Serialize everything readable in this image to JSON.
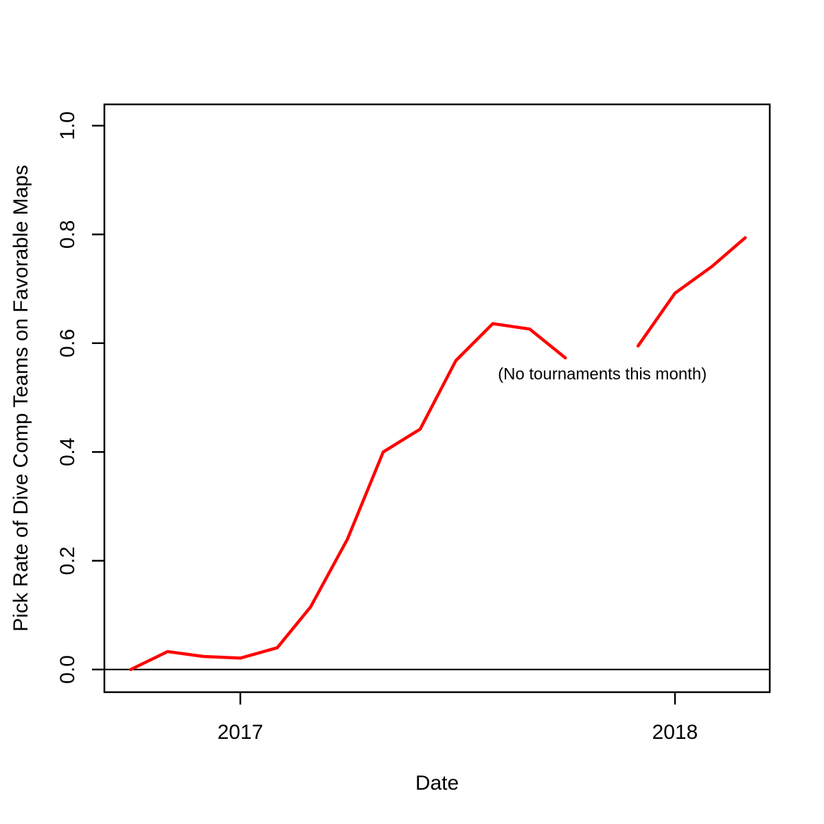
{
  "chart_data": {
    "type": "line",
    "title": "",
    "xlabel": "Date",
    "ylabel": "Pick Rate of Dive Comp Teams on Favorable Maps",
    "ylim": [
      0.0,
      1.0
    ],
    "grid": false,
    "legend": "none",
    "background_color": "#FFFFFF",
    "axis_color": "#000000",
    "line_color": "#FF0000",
    "zero_line": {
      "value": 0.0
    },
    "x_axis": {
      "title": "Date",
      "ticks": [
        {
          "label": "2017",
          "date": "2017-01-01"
        },
        {
          "label": "2018",
          "date": "2018-01-01"
        }
      ]
    },
    "y_axis": {
      "title": "Pick Rate of Dive Comp Teams on Favorable Maps",
      "tick_values": [
        0.0,
        0.2,
        0.4,
        0.6,
        0.8,
        1.0
      ],
      "tick_labels": [
        "0.0",
        "0.2",
        "0.4",
        "0.6",
        "0.8",
        "1.0"
      ]
    },
    "annotation": {
      "text": "(No tournaments this month)",
      "date": "2017-11-01",
      "value": 0.545
    },
    "series": [
      {
        "color": "#FF0000",
        "points": [
          {
            "date": "2016-10-01",
            "value": 0.0
          },
          {
            "date": "2016-11-01",
            "value": 0.033
          },
          {
            "date": "2016-12-01",
            "value": 0.024
          },
          {
            "date": "2017-01-01",
            "value": 0.021
          },
          {
            "date": "2017-02-01",
            "value": 0.04
          },
          {
            "date": "2017-03-01",
            "value": 0.115
          },
          {
            "date": "2017-04-01",
            "value": 0.24
          },
          {
            "date": "2017-05-01",
            "value": 0.4
          },
          {
            "date": "2017-06-01",
            "value": 0.442
          },
          {
            "date": "2017-07-01",
            "value": 0.568
          },
          {
            "date": "2017-08-01",
            "value": 0.636
          },
          {
            "date": "2017-09-01",
            "value": 0.626
          },
          {
            "date": "2017-10-01",
            "value": 0.573
          },
          {
            "date": "2017-11-01",
            "value": null
          },
          {
            "date": "2017-12-01",
            "value": 0.595
          },
          {
            "date": "2018-01-01",
            "value": 0.692
          },
          {
            "date": "2018-02-01",
            "value": 0.741
          },
          {
            "date": "2018-03-01",
            "value": 0.794
          }
        ]
      }
    ]
  }
}
